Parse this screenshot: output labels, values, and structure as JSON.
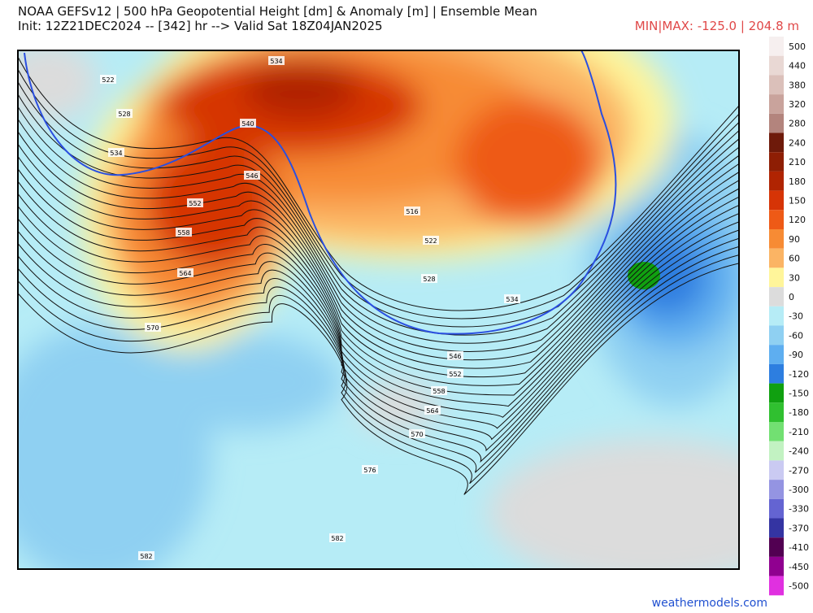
{
  "header": {
    "title": "NOAA GEFSv12 | 500 hPa Geopotential Height [dm] & Anomaly [m] | Ensemble Mean",
    "subtitle": "Init: 12Z21DEC2024 -- [342] hr --> Valid Sat 18Z04JAN2025",
    "minmax": "MIN|MAX: -125.0 | 204.8 m"
  },
  "colorbar": {
    "ticks": [
      500,
      440,
      380,
      320,
      280,
      240,
      210,
      180,
      150,
      120,
      90,
      60,
      30,
      0,
      -30,
      -60,
      -90,
      -120,
      -150,
      -180,
      -210,
      -240,
      -270,
      -300,
      -330,
      -370,
      -410,
      -450,
      -500
    ],
    "colors": [
      "#f6efef",
      "#e9d8d4",
      "#dbc0ba",
      "#c9a39c",
      "#b3847d",
      "#6e1a0a",
      "#8e1e04",
      "#b02402",
      "#d63406",
      "#ee5a16",
      "#f78b34",
      "#fbb464",
      "#fff59a",
      "#dcdcdc",
      "#b6ecf6",
      "#8fd0f2",
      "#5eaef0",
      "#2d7ee0",
      "#10a010",
      "#30c030",
      "#72e072",
      "#c2f2c2",
      "#cacaf2",
      "#9494e2",
      "#6464d2",
      "#3434a2",
      "#520052",
      "#900090",
      "#e030e0"
    ]
  },
  "contour_labels": [
    534,
    522,
    528,
    534,
    540,
    546,
    552,
    558,
    564,
    570,
    516,
    522,
    528,
    534,
    546,
    552,
    558,
    564,
    570,
    576,
    582,
    582
  ],
  "footer": "weathermodels.com"
}
